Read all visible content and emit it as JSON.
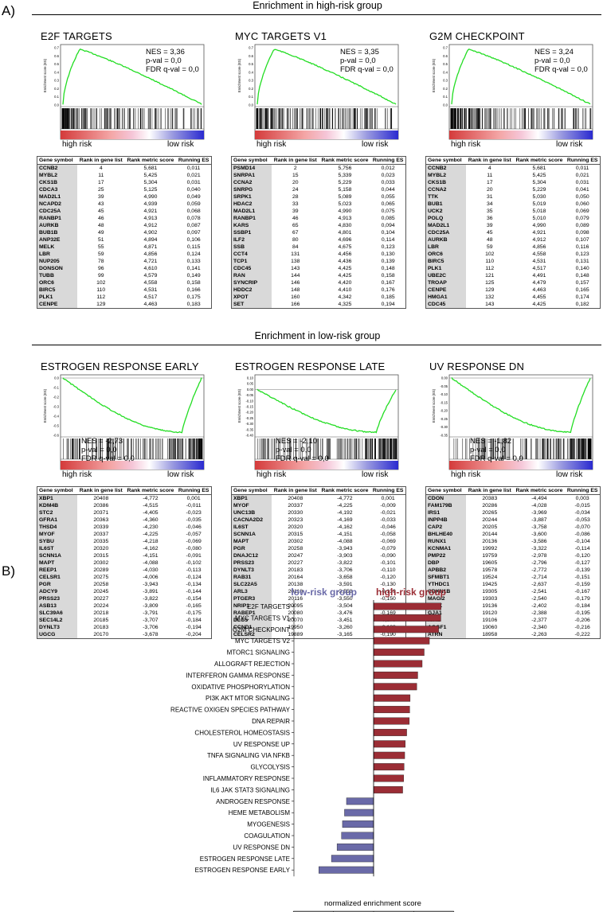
{
  "panel_a_label": "A)",
  "panel_b_label": "B)",
  "section_high": "Enrichment in high-risk group",
  "section_low": "Enrichment in low-risk group",
  "es_axis_label": "Enrichment score (ES)",
  "risk_left": "high risk",
  "risk_right": "low risk",
  "table_headers": [
    "Gene symbol",
    "Rank in gene list",
    "Rank metric score",
    "Running ES"
  ],
  "gsea": [
    {
      "title": "E2F TARGETS",
      "nes": "NES = 3,36",
      "pval": "p-val = 0,0",
      "fdr": "FDR q-val = 0,0",
      "direction": "up",
      "yticks": [
        "0.7",
        "0.6",
        "0.5",
        "0.4",
        "0.3",
        "0.2",
        "0.1",
        "0.0"
      ],
      "rows": [
        [
          "CCNB2",
          "4",
          "5,681",
          "0,011"
        ],
        [
          "MYBL2",
          "11",
          "5,425",
          "0,021"
        ],
        [
          "CKS1B",
          "17",
          "5,304",
          "0,031"
        ],
        [
          "CDCA3",
          "25",
          "5,125",
          "0,040"
        ],
        [
          "MAD2L1",
          "39",
          "4,990",
          "0,049"
        ],
        [
          "NCAPD2",
          "43",
          "4,939",
          "0,059"
        ],
        [
          "CDC25A",
          "45",
          "4,921",
          "0,068"
        ],
        [
          "RANBP1",
          "46",
          "4,913",
          "0,078"
        ],
        [
          "AURKB",
          "48",
          "4,912",
          "0,087"
        ],
        [
          "BUB1B",
          "49",
          "4,902",
          "0,097"
        ],
        [
          "ANP32E",
          "51",
          "4,894",
          "0,106"
        ],
        [
          "MELK",
          "55",
          "4,871",
          "0,115"
        ],
        [
          "LBR",
          "59",
          "4,856",
          "0,124"
        ],
        [
          "NUP205",
          "78",
          "4,721",
          "0,133"
        ],
        [
          "DONSON",
          "96",
          "4,610",
          "0,141"
        ],
        [
          "TUBB",
          "99",
          "4,579",
          "0,149"
        ],
        [
          "ORC6",
          "102",
          "4,558",
          "0,158"
        ],
        [
          "BIRC5",
          "110",
          "4,531",
          "0,166"
        ],
        [
          "PLK1",
          "112",
          "4,517",
          "0,175"
        ],
        [
          "CENPE",
          "129",
          "4,463",
          "0,183"
        ]
      ]
    },
    {
      "title": "MYC TARGETS V1",
      "nes": "NES = 3,35",
      "pval": "p-val = 0,0",
      "fdr": "FDR q-val = 0,0",
      "direction": "up",
      "yticks": [
        "0.7",
        "0.6",
        "0.5",
        "0.4",
        "0.3",
        "0.2",
        "0.1",
        "0.0"
      ],
      "rows": [
        [
          "PSMD14",
          "2",
          "5,756",
          "0,012"
        ],
        [
          "SNRPA1",
          "15",
          "5,339",
          "0,023"
        ],
        [
          "CCNA2",
          "20",
          "5,229",
          "0,033"
        ],
        [
          "SNRPG",
          "24",
          "5,158",
          "0,044"
        ],
        [
          "SRPK1",
          "28",
          "5,089",
          "0,055"
        ],
        [
          "HDAC2",
          "33",
          "5,023",
          "0,065"
        ],
        [
          "MAD2L1",
          "39",
          "4,990",
          "0,075"
        ],
        [
          "RANBP1",
          "46",
          "4,913",
          "0,085"
        ],
        [
          "KARS",
          "65",
          "4,830",
          "0,094"
        ],
        [
          "SSBP1",
          "67",
          "4,801",
          "0,104"
        ],
        [
          "ILF2",
          "80",
          "4,696",
          "0,114"
        ],
        [
          "SSB",
          "84",
          "4,675",
          "0,123"
        ],
        [
          "CCT4",
          "131",
          "4,456",
          "0,130"
        ],
        [
          "TCP1",
          "138",
          "4,436",
          "0,139"
        ],
        [
          "CDC45",
          "143",
          "4,425",
          "0,148"
        ],
        [
          "RAN",
          "144",
          "4,425",
          "0,158"
        ],
        [
          "SYNCRIP",
          "146",
          "4,420",
          "0,167"
        ],
        [
          "HDDC2",
          "148",
          "4,410",
          "0,176"
        ],
        [
          "XPOT",
          "160",
          "4,342",
          "0,185"
        ],
        [
          "SET",
          "166",
          "4,325",
          "0,194"
        ]
      ]
    },
    {
      "title": "G2M CHECKPOINT",
      "nes": "NES = 3,24",
      "pval": "p-val = 0,0",
      "fdr": "FDR q-val = 0,0",
      "direction": "up",
      "yticks": [
        "0.7",
        "0.6",
        "0.5",
        "0.4",
        "0.3",
        "0.2",
        "0.1",
        "0.0"
      ],
      "rows": [
        [
          "CCNB2",
          "4",
          "5,681",
          "0,011"
        ],
        [
          "MYBL2",
          "11",
          "5,425",
          "0,021"
        ],
        [
          "CKS1B",
          "17",
          "5,304",
          "0,031"
        ],
        [
          "CCNA2",
          "20",
          "5,229",
          "0,041"
        ],
        [
          "TTK",
          "31",
          "5,030",
          "0,050"
        ],
        [
          "BUB1",
          "34",
          "5,019",
          "0,060"
        ],
        [
          "UCK2",
          "35",
          "5,018",
          "0,069"
        ],
        [
          "POLQ",
          "36",
          "5,010",
          "0,079"
        ],
        [
          "MAD2L1",
          "39",
          "4,990",
          "0,089"
        ],
        [
          "CDC25A",
          "45",
          "4,921",
          "0,098"
        ],
        [
          "AURKB",
          "48",
          "4,912",
          "0,107"
        ],
        [
          "LBR",
          "59",
          "4,856",
          "0,116"
        ],
        [
          "ORC6",
          "102",
          "4,558",
          "0,123"
        ],
        [
          "BIRC5",
          "110",
          "4,531",
          "0,131"
        ],
        [
          "PLK1",
          "112",
          "4,517",
          "0,140"
        ],
        [
          "UBE2C",
          "121",
          "4,491",
          "0,148"
        ],
        [
          "TROAP",
          "125",
          "4,479",
          "0,157"
        ],
        [
          "CENPE",
          "129",
          "4,463",
          "0,165"
        ],
        [
          "HMGA1",
          "132",
          "4,455",
          "0,174"
        ],
        [
          "CDC45",
          "143",
          "4,425",
          "0,182"
        ]
      ]
    },
    {
      "title": "ESTROGEN RESPONSE EARLY",
      "nes": "NES = -2,73",
      "pval": "p-val = 0,0",
      "fdr": "FDR q-val = 0,0",
      "direction": "down",
      "yticks": [
        "0.0",
        "-0.1",
        "-0.2",
        "-0.3",
        "-0.4",
        "-0.5",
        "-0.6"
      ],
      "rows": [
        [
          "XBP1",
          "20408",
          "-4,772",
          "0,001"
        ],
        [
          "KDM4B",
          "20386",
          "-4,515",
          "-0,011"
        ],
        [
          "STC2",
          "20371",
          "-4,405",
          "-0,023"
        ],
        [
          "GFRA1",
          "20363",
          "-4,360",
          "-0,035"
        ],
        [
          "THSD4",
          "20339",
          "-4,230",
          "-0,046"
        ],
        [
          "MYOF",
          "20337",
          "-4,225",
          "-0,057"
        ],
        [
          "SYBU",
          "20335",
          "-4,218",
          "-0,069"
        ],
        [
          "IL6ST",
          "20320",
          "-4,162",
          "-0,080"
        ],
        [
          "SCNN1A",
          "20315",
          "-4,151",
          "-0,091"
        ],
        [
          "MAPT",
          "20302",
          "-4,088",
          "-0,102"
        ],
        [
          "REEP1",
          "20289",
          "-4,030",
          "-0,113"
        ],
        [
          "CELSR1",
          "20275",
          "-4,006",
          "-0,124"
        ],
        [
          "PGR",
          "20258",
          "-3,943",
          "-0,134"
        ],
        [
          "ADCY9",
          "20245",
          "-3,891",
          "-0,144"
        ],
        [
          "PRSS23",
          "20227",
          "-3,822",
          "-0,154"
        ],
        [
          "ASB13",
          "20224",
          "-3,809",
          "-0,165"
        ],
        [
          "SLC39A6",
          "20218",
          "-3,791",
          "-0,175"
        ],
        [
          "SEC14L2",
          "20185",
          "-3,707",
          "-0,184"
        ],
        [
          "DYNLT3",
          "20183",
          "-3,706",
          "-0,194"
        ],
        [
          "UGCG",
          "20170",
          "-3,678",
          "-0,204"
        ]
      ]
    },
    {
      "title": "ESTROGEN RESPONSE LATE",
      "nes": "NES = -2,10",
      "pval": "p-val = 0,0",
      "fdr": "FDR q-val = 0,0",
      "direction": "down",
      "yticks": [
        "0.10",
        "0.05",
        "0.00",
        "-0.05",
        "-0.10",
        "-0.15",
        "-0.20",
        "-0.25",
        "-0.30",
        "-0.35",
        "-0.40"
      ],
      "rows": [
        [
          "XBP1",
          "20408",
          "-4,772",
          "0,001"
        ],
        [
          "MYOF",
          "20337",
          "-4,225",
          "-0,009"
        ],
        [
          "UNC13B",
          "20330",
          "-4,192",
          "-0,021"
        ],
        [
          "CACNA2D2",
          "20323",
          "-4,169",
          "-0,033"
        ],
        [
          "IL6ST",
          "20320",
          "-4,162",
          "-0,046"
        ],
        [
          "SCNN1A",
          "20315",
          "-4,151",
          "-0,058"
        ],
        [
          "MAPT",
          "20302",
          "-4,088",
          "-0,069"
        ],
        [
          "PGR",
          "20258",
          "-3,943",
          "-0,079"
        ],
        [
          "DNAJC12",
          "20247",
          "-3,903",
          "-0,090"
        ],
        [
          "PRSS23",
          "20227",
          "-3,822",
          "-0,101"
        ],
        [
          "DYNLT3",
          "20183",
          "-3,706",
          "-0,110"
        ],
        [
          "RAB31",
          "20164",
          "-3,658",
          "-0,120"
        ],
        [
          "SLC22A5",
          "20138",
          "-3,591",
          "-0,130"
        ],
        [
          "ARL3",
          "20118",
          "-3,553",
          "-0,139"
        ],
        [
          "PTGER3",
          "20116",
          "-3,550",
          "-0,150"
        ],
        [
          "NRIP1",
          "20095",
          "-3,504",
          "-0,159"
        ],
        [
          "RABEP1",
          "20080",
          "-3,476",
          "-0,169"
        ],
        [
          "DLG5",
          "20070",
          "-3,451",
          "-0,179"
        ],
        [
          "CCND1",
          "19950",
          "-3,260",
          "-0,183"
        ],
        [
          "CELSR2",
          "19889",
          "-3,165",
          "-0,190"
        ]
      ]
    },
    {
      "title": "UV RESPONSE DN",
      "nes": "NES = -1,82",
      "pval": "p-val = 0,0",
      "fdr": "FDR q-val = 0,0",
      "direction": "down",
      "yticks": [
        "0.00",
        "-0.05",
        "-0.10",
        "-0.15",
        "-0.20",
        "-0.25",
        "-0.30",
        "-0.35"
      ],
      "rows": [
        [
          "CDON",
          "20383",
          "-4,494",
          "0,003"
        ],
        [
          "FAM179B",
          "20286",
          "-4,028",
          "-0,015"
        ],
        [
          "IRS1",
          "20265",
          "-3,969",
          "-0,034"
        ],
        [
          "INPP4B",
          "20244",
          "-3,887",
          "-0,053"
        ],
        [
          "CAP2",
          "20205",
          "-3,758",
          "-0,070"
        ],
        [
          "BHLHE40",
          "20144",
          "-3,600",
          "-0,086"
        ],
        [
          "RUNX1",
          "20136",
          "-3,586",
          "-0,104"
        ],
        [
          "KCNMA1",
          "19992",
          "-3,322",
          "-0,114"
        ],
        [
          "PMP22",
          "19759",
          "-2,978",
          "-0,120"
        ],
        [
          "DBP",
          "19605",
          "-2,796",
          "-0,127"
        ],
        [
          "APBB2",
          "19578",
          "-2,772",
          "-0,139"
        ],
        [
          "SFMBT1",
          "19524",
          "-2,714",
          "-0,151"
        ],
        [
          "YTHDC1",
          "19425",
          "-2,637",
          "-0,159"
        ],
        [
          "CDKN1B",
          "19305",
          "-2,541",
          "-0,167"
        ],
        [
          "MAGI2",
          "19303",
          "-2,540",
          "-0,179"
        ],
        [
          "ATRX",
          "19136",
          "-2,402",
          "-0,184"
        ],
        [
          "GJA1",
          "19120",
          "-2,388",
          "-0,195"
        ],
        [
          "ICA1",
          "19106",
          "-2,377",
          "-0,206"
        ],
        [
          "AGGF1",
          "19060",
          "-2,340",
          "-0,216"
        ],
        [
          "ATRN",
          "18958",
          "-2,263",
          "-0,222"
        ]
      ]
    }
  ],
  "colors": {
    "curve": "#22dd22",
    "high_bar": "#9b2d35",
    "low_bar": "#6a6aa8",
    "high_label": "#9b2d35",
    "low_label": "#6a6aa8"
  },
  "chart_data": {
    "type": "bar",
    "orientation": "horizontal",
    "legend": {
      "low": "low-risk group",
      "high": "high-risk group"
    },
    "xlabel": "normalized enrichment score",
    "xlim": [
      -4,
      4
    ],
    "xticks": [
      "-4",
      "-2",
      "0",
      "2",
      "4"
    ],
    "categories": [
      "E2F TARGETS",
      "MYC TARGETS V1",
      "G2M CHECKPOINT",
      "MYC TARGETS V2",
      "MTORC1 SIGNALING",
      "ALLOGRAFT REJECTION",
      "INTERFERON GAMMA RESPONSE",
      "OXIDATIVE PHOSPHORYLATION",
      "PI3K AKT MTOR SIGNALING",
      "REACTIVE OXIGEN SPECIES PATHWAY",
      "DNA REPAIR",
      "CHOLESTEROL HOMEOSTASIS",
      "UV RESPONSE UP",
      "TNFA SIGNALING VIA NFKB",
      "GLYCOLYSIS",
      "INFLAMMATORY RESPONSE",
      "IL6 JAK STAT3 SIGNALING",
      "ANDROGEN RESPONSE",
      "HEME METABOLISM",
      "MYOGENESIS",
      "COAGULATION",
      "UV RESPONSE DN",
      "ESTROGEN RESPONSE LATE",
      "ESTROGEN RESPONSE EARLY"
    ],
    "values": [
      3.36,
      3.35,
      3.24,
      2.78,
      2.52,
      2.42,
      2.2,
      2.15,
      1.82,
      1.8,
      1.78,
      1.65,
      1.58,
      1.55,
      1.52,
      1.5,
      1.45,
      -1.35,
      -1.45,
      -1.55,
      -1.6,
      -1.82,
      -2.1,
      -2.73
    ]
  }
}
